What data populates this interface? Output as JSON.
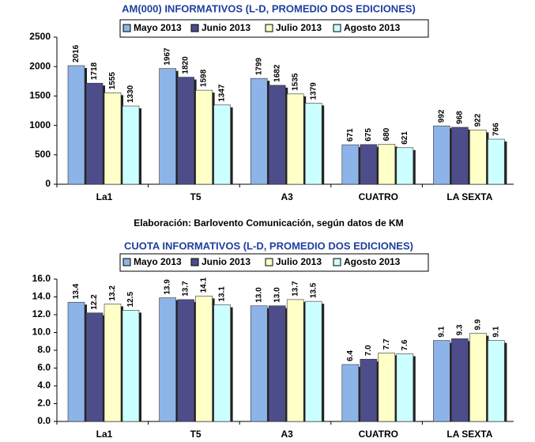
{
  "chart_data": [
    {
      "type": "bar",
      "title": "AM(000)  INFORMATIVOS (L-D, PROMEDIO DOS EDICIONES)",
      "annotation": "Elaboración: Barlovento Comunicación, según datos de KM",
      "categories": [
        "La1",
        "T5",
        "A3",
        "CUATRO",
        "LA SEXTA"
      ],
      "series": [
        {
          "name": "Mayo 2013",
          "color": "#8db4e8",
          "values": [
            2016,
            1967,
            1799,
            671,
            992
          ]
        },
        {
          "name": "Junio 2013",
          "color": "#4d4d8c",
          "values": [
            1718,
            1820,
            1682,
            675,
            968
          ]
        },
        {
          "name": "Julio 2013",
          "color": "#ffffc8",
          "values": [
            1555,
            1598,
            1535,
            680,
            922
          ]
        },
        {
          "name": "Agosto 2013",
          "color": "#ccffff",
          "values": [
            1330,
            1347,
            1379,
            621,
            766
          ]
        }
      ],
      "ylim": [
        0,
        2500
      ],
      "yticks": [
        0,
        500,
        1000,
        1500,
        2000,
        2500
      ]
    },
    {
      "type": "bar",
      "title": "CUOTA INFORMATIVOS (L-D, PROMEDIO DOS EDICIONES)",
      "categories": [
        "La1",
        "T5",
        "A3",
        "CUATRO",
        "LA SEXTA"
      ],
      "series": [
        {
          "name": "Mayo 2013",
          "color": "#8db4e8",
          "values": [
            13.4,
            13.9,
            13.0,
            6.4,
            9.1
          ],
          "value_labels": [
            "13.4",
            "13.9",
            "13.0",
            "6.4",
            "9.1"
          ]
        },
        {
          "name": "Junio 2013",
          "color": "#4d4d8c",
          "values": [
            12.2,
            13.7,
            13.0,
            7.0,
            9.3
          ],
          "value_labels": [
            "12.2",
            "13.7",
            "13.0",
            "7.0",
            "9.3"
          ]
        },
        {
          "name": "Julio 2013",
          "color": "#ffffc8",
          "values": [
            13.2,
            14.1,
            13.7,
            7.7,
            9.9
          ],
          "value_labels": [
            "13.2",
            "14.1",
            "13.7",
            "7.7",
            "9.9"
          ]
        },
        {
          "name": "Agosto 2013",
          "color": "#ccffff",
          "values": [
            12.5,
            13.1,
            13.5,
            7.6,
            9.1
          ],
          "value_labels": [
            "12.5",
            "13.1",
            "13.5",
            "7.6",
            "9.1"
          ]
        }
      ],
      "ylim": [
        0,
        16
      ],
      "yticks": [
        {
          "value": 0,
          "label": "0.0"
        },
        {
          "value": 2,
          "label": "2.0"
        },
        {
          "value": 4,
          "label": "4.0"
        },
        {
          "value": 6,
          "label": "6.0"
        },
        {
          "value": 8,
          "label": "8.0"
        },
        {
          "value": 10,
          "label": "10.0"
        },
        {
          "value": 12,
          "label": "12.0"
        },
        {
          "value": 14,
          "label": "14.0"
        },
        {
          "value": 16,
          "label": "16.0"
        }
      ]
    }
  ]
}
